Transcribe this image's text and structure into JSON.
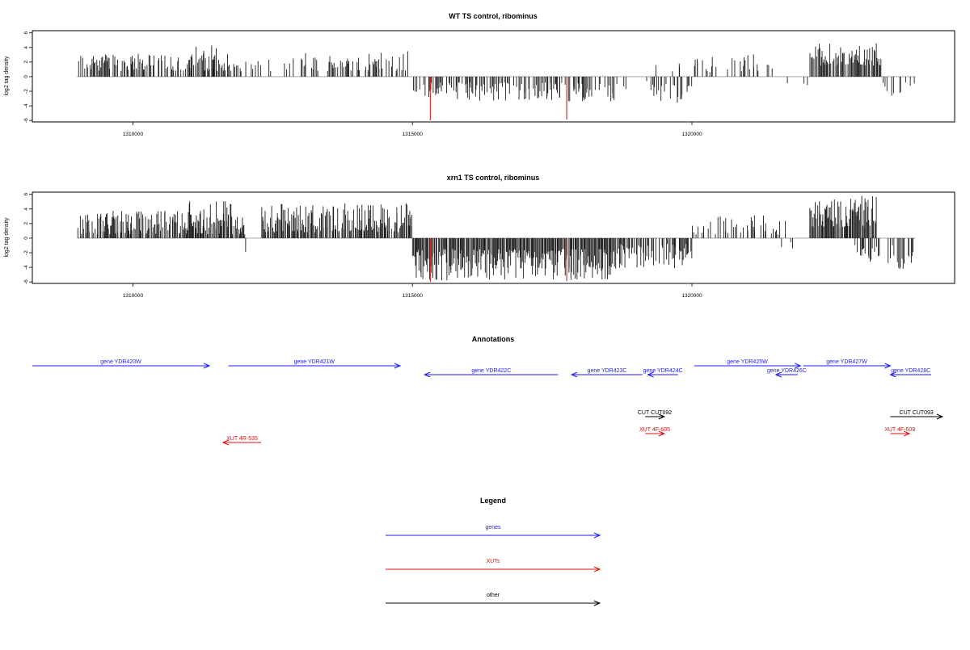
{
  "colors": {
    "bar": "#1a1a1a",
    "highlight": "#d62020",
    "gene": "#1a1aff",
    "xut": "#e01010",
    "other": "#000000",
    "axis": "#000000",
    "zero_line": "#9a9a9a"
  },
  "chart_data": [
    {
      "type": "bar",
      "title": "WT TS control, ribominus",
      "ylabel": "log2 tag density",
      "xlim": [
        1308200,
        1324700
      ],
      "ylim": [
        -6.2,
        6.3
      ],
      "yticks": [
        -6,
        -4,
        -2,
        0,
        2,
        4,
        6
      ],
      "xticks": [
        1310000,
        1315000,
        1320000
      ],
      "data_range": [
        1309000,
        1324000
      ],
      "highlight_bars": [
        {
          "x": 1315320,
          "y": -6
        },
        {
          "x": 1317760,
          "y": -5.9
        }
      ],
      "segments": [
        {
          "from": 1309000,
          "to": 1311900,
          "sign": 1,
          "min": 0.8,
          "max": 3.2,
          "density": 0.55
        },
        {
          "from": 1311000,
          "to": 1311500,
          "sign": 1,
          "min": 1.5,
          "max": 4.5,
          "density": 0.4
        },
        {
          "from": 1311900,
          "to": 1313000,
          "sign": 1,
          "min": 0.6,
          "max": 2.6,
          "density": 0.2
        },
        {
          "from": 1311800,
          "to": 1312300,
          "sign": -1,
          "min": 0.5,
          "max": 2.0,
          "density": 0.06
        },
        {
          "from": 1313000,
          "to": 1315000,
          "sign": 1,
          "min": 0.8,
          "max": 3.5,
          "density": 0.4
        },
        {
          "from": 1315000,
          "to": 1318600,
          "sign": -1,
          "min": 0.8,
          "max": 3.4,
          "density": 0.5
        },
        {
          "from": 1318600,
          "to": 1319400,
          "sign": -1,
          "min": 0.6,
          "max": 2.4,
          "density": 0.25
        },
        {
          "from": 1319300,
          "to": 1320000,
          "sign": -1,
          "min": 1.0,
          "max": 4.0,
          "density": 0.3
        },
        {
          "from": 1319300,
          "to": 1319800,
          "sign": 1,
          "min": 0.5,
          "max": 1.9,
          "density": 0.12
        },
        {
          "from": 1320000,
          "to": 1321700,
          "sign": 1,
          "min": 0.6,
          "max": 3.1,
          "density": 0.18
        },
        {
          "from": 1321700,
          "to": 1322100,
          "sign": -1,
          "min": 0.8,
          "max": 3.2,
          "density": 0.2
        },
        {
          "from": 1322100,
          "to": 1323400,
          "sign": 1,
          "min": 1.5,
          "max": 4.6,
          "density": 0.8
        },
        {
          "from": 1323400,
          "to": 1324000,
          "sign": -1,
          "min": 0.8,
          "max": 4.0,
          "density": 0.25
        }
      ]
    },
    {
      "type": "bar",
      "title": "xrn1 TS control, ribominus",
      "ylabel": "log2 tag density",
      "xlim": [
        1308200,
        1324700
      ],
      "ylim": [
        -6.2,
        6.3
      ],
      "yticks": [
        -6,
        -4,
        -2,
        0,
        2,
        4,
        6
      ],
      "xticks": [
        1310000,
        1315000,
        1320000
      ],
      "data_range": [
        1309000,
        1324000
      ],
      "highlight_bars": [
        {
          "x": 1315320,
          "y": -6
        },
        {
          "x": 1317760,
          "y": -5.9
        }
      ],
      "segments": [
        {
          "from": 1309000,
          "to": 1312000,
          "sign": 1,
          "min": 0.5,
          "max": 3.8,
          "density": 0.8
        },
        {
          "from": 1311000,
          "to": 1311800,
          "sign": 1,
          "min": 2.0,
          "max": 5.2,
          "density": 0.4
        },
        {
          "from": 1312000,
          "to": 1312300,
          "sign": -1,
          "min": 1.0,
          "max": 2.2,
          "density": 0.1
        },
        {
          "from": 1312300,
          "to": 1315000,
          "sign": 1,
          "min": 0.8,
          "max": 4.8,
          "density": 0.85
        },
        {
          "from": 1315000,
          "to": 1318600,
          "sign": -1,
          "min": 1.5,
          "max": 5.8,
          "density": 0.95
        },
        {
          "from": 1318600,
          "to": 1320000,
          "sign": -1,
          "min": 0.8,
          "max": 4.2,
          "density": 0.6
        },
        {
          "from": 1320000,
          "to": 1321700,
          "sign": 1,
          "min": 0.5,
          "max": 3.2,
          "density": 0.3
        },
        {
          "from": 1321500,
          "to": 1322000,
          "sign": -1,
          "min": 0.5,
          "max": 3.0,
          "density": 0.15
        },
        {
          "from": 1322100,
          "to": 1323300,
          "sign": 1,
          "min": 1.5,
          "max": 5.8,
          "density": 0.95
        },
        {
          "from": 1322900,
          "to": 1324000,
          "sign": -1,
          "min": 0.8,
          "max": 4.5,
          "density": 0.45
        }
      ]
    }
  ],
  "annotations": {
    "title": "Annotations",
    "xlim": [
      1308200,
      1324700
    ],
    "features": [
      {
        "label": "gene YDR420W",
        "type": "gene",
        "start": 1308200,
        "end": 1311450,
        "strand": "+",
        "row": 0
      },
      {
        "label": "gene YDR421W",
        "type": "gene",
        "start": 1311800,
        "end": 1314950,
        "strand": "+",
        "row": 0
      },
      {
        "label": "gene YDR422C",
        "type": "gene",
        "start": 1315400,
        "end": 1317850,
        "strand": "-",
        "row": 1
      },
      {
        "label": "gene YDR423C",
        "type": "gene",
        "start": 1318100,
        "end": 1319400,
        "strand": "-",
        "row": 1
      },
      {
        "label": "gene YDR424C",
        "type": "gene",
        "start": 1319500,
        "end": 1320050,
        "strand": "-",
        "row": 1
      },
      {
        "label": "gene YDR425W",
        "type": "gene",
        "start": 1320350,
        "end": 1322300,
        "strand": "+",
        "row": 0
      },
      {
        "label": "gene YDR426C",
        "type": "gene",
        "start": 1321850,
        "end": 1322250,
        "strand": "-",
        "row": 1
      },
      {
        "label": "gene YDR427W",
        "type": "gene",
        "start": 1322350,
        "end": 1323950,
        "strand": "+",
        "row": 0
      },
      {
        "label": "gene YDR428C",
        "type": "gene",
        "start": 1323950,
        "end": 1324700,
        "strand": "-",
        "row": 1
      },
      {
        "label": "CUT CUT092",
        "type": "other",
        "start": 1319450,
        "end": 1319800,
        "strand": "+",
        "row": 2
      },
      {
        "label": "CUT CUT093",
        "type": "other",
        "start": 1323950,
        "end": 1324950,
        "strand": "+",
        "row": 2
      },
      {
        "label": "XUT 4F-605",
        "type": "xut",
        "start": 1319450,
        "end": 1319800,
        "strand": "+",
        "row": 3
      },
      {
        "label": "XUT 4F-609",
        "type": "xut",
        "start": 1323950,
        "end": 1324300,
        "strand": "+",
        "row": 3
      },
      {
        "label": "XUT 4R-535",
        "type": "xut",
        "start": 1311700,
        "end": 1312400,
        "strand": "-",
        "row": 4
      }
    ]
  },
  "legend": {
    "title": "Legend",
    "items": [
      {
        "label": "genes",
        "type": "gene"
      },
      {
        "label": "XUTs",
        "type": "xut"
      },
      {
        "label": "other",
        "type": "other"
      }
    ]
  }
}
